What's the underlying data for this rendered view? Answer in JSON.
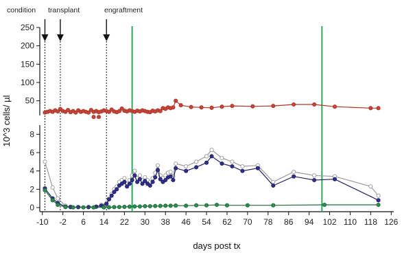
{
  "chart_data": {
    "type": "line",
    "xlabel": "days post tx",
    "ylabel": "10^3 cells/ µl",
    "x_ticks": [
      -10,
      -2,
      6,
      14,
      22,
      30,
      38,
      46,
      54,
      62,
      70,
      78,
      86,
      94,
      102,
      110,
      118,
      126
    ],
    "x_tick_labels": [
      "-10",
      "-2",
      "6",
      "14",
      "22",
      "30",
      "38",
      "46",
      "54",
      "62",
      "70",
      "78",
      "86",
      "94",
      "102",
      "110",
      "118",
      "126"
    ],
    "xlim": [
      -11,
      127
    ],
    "y_upper": {
      "ylim": [
        10,
        250
      ],
      "ticks": [
        50,
        100,
        150,
        200,
        250
      ],
      "tick_labels": [
        "50",
        "100",
        "150",
        "200",
        "250"
      ]
    },
    "y_lower": {
      "ylim": [
        -0.3,
        9
      ],
      "ticks": [
        0,
        2,
        4,
        6,
        8
      ],
      "tick_labels": [
        "0",
        "2",
        "4",
        "6",
        "8"
      ]
    },
    "annotations": [
      {
        "label": "condition",
        "x": -9
      },
      {
        "label": "transplant",
        "x": -3
      },
      {
        "label": "engraftment",
        "x": 15
      }
    ],
    "vlines": [
      {
        "x": 25,
        "color": "#2aaa5e"
      },
      {
        "x": 99,
        "color": "#2aaa5e"
      }
    ],
    "series": [
      {
        "panel": "upper",
        "color": "#b23226",
        "marker_fill": "#c0473a",
        "x": [
          -9,
          -8,
          -7,
          -6,
          -5,
          -4,
          -3,
          -2,
          -1,
          0,
          1,
          2,
          3,
          4,
          5,
          6,
          7,
          8,
          9,
          10,
          11,
          12,
          13,
          14,
          15,
          16,
          17,
          18,
          19,
          20,
          21,
          22,
          23,
          24,
          25,
          26,
          27,
          28,
          29,
          30,
          31,
          32,
          33,
          34,
          35,
          36,
          37,
          38,
          39,
          40,
          41,
          42,
          44,
          48,
          52,
          56,
          60,
          64,
          72,
          80,
          88,
          96,
          104,
          118,
          121
        ],
        "y": [
          18,
          20,
          22,
          20,
          24,
          21,
          28,
          22,
          20,
          25,
          19,
          22,
          18,
          24,
          20,
          22,
          20,
          18,
          25,
          20,
          22,
          19,
          21,
          24,
          22,
          20,
          26,
          21,
          19,
          22,
          29,
          23,
          21,
          24,
          22,
          20,
          23,
          21,
          24,
          22,
          20,
          19,
          23,
          21,
          24,
          22,
          30,
          28,
          32,
          30,
          32,
          50,
          38,
          33,
          32,
          31,
          34,
          36,
          35,
          36,
          40,
          40,
          34,
          30,
          30
        ],
        "isolated_points": [
          {
            "x": 10,
            "y": 6
          },
          {
            "x": 12,
            "y": 6
          }
        ]
      },
      {
        "panel": "lower",
        "color": "#999999",
        "marker_fill": "#ffffff",
        "x": [
          -9,
          -6,
          -4,
          -1,
          1,
          4,
          8,
          11,
          13,
          15,
          16,
          17,
          18,
          19,
          20,
          21,
          22,
          23,
          24,
          25,
          26,
          27,
          28,
          29,
          30,
          31,
          32,
          33,
          34,
          35,
          36,
          37,
          38,
          39,
          40,
          41,
          42,
          46,
          50,
          54,
          56,
          60,
          64,
          68,
          74,
          80,
          88,
          96,
          104,
          118,
          121
        ],
        "y": [
          5.0,
          2.2,
          1.0,
          0.2,
          0.1,
          0.05,
          0.05,
          0.1,
          0.3,
          0.5,
          1.0,
          1.5,
          2.0,
          2.3,
          2.8,
          3.0,
          3.2,
          2.6,
          3.0,
          3.5,
          4.0,
          3.2,
          3.5,
          3.0,
          3.3,
          3.0,
          2.8,
          3.2,
          3.8,
          4.6,
          3.5,
          3.2,
          3.5,
          3.8,
          3.9,
          3.4,
          4.8,
          4.5,
          5.0,
          5.6,
          6.3,
          5.4,
          5.0,
          4.5,
          4.6,
          2.8,
          3.9,
          3.5,
          3.4,
          2.3,
          1.3
        ]
      },
      {
        "panel": "lower",
        "color": "#22226a",
        "marker_fill": "#2f2f8a",
        "x": [
          -9,
          -6,
          -4,
          -1,
          1,
          4,
          8,
          11,
          13,
          15,
          16,
          17,
          18,
          19,
          20,
          21,
          22,
          23,
          24,
          25,
          26,
          27,
          28,
          29,
          30,
          31,
          32,
          33,
          34,
          35,
          36,
          37,
          38,
          39,
          40,
          41,
          42,
          46,
          50,
          54,
          56,
          60,
          64,
          68,
          74,
          80,
          88,
          96,
          104,
          121
        ],
        "y": [
          2.1,
          1.0,
          0.5,
          0.1,
          0.05,
          0.05,
          0.05,
          0.1,
          0.2,
          0.4,
          0.9,
          1.3,
          1.7,
          2.0,
          2.4,
          2.6,
          2.8,
          2.3,
          2.6,
          3.0,
          3.5,
          2.8,
          3.1,
          2.6,
          2.9,
          2.6,
          2.4,
          2.8,
          3.3,
          4.1,
          3.1,
          2.8,
          3.0,
          3.3,
          3.4,
          3.0,
          4.3,
          4.0,
          4.4,
          4.9,
          5.6,
          4.8,
          4.5,
          4.0,
          4.3,
          2.4,
          3.4,
          3.0,
          3.1,
          0.8
        ]
      },
      {
        "panel": "lower",
        "color": "#1f6b3a",
        "marker_fill": "#2e8c4f",
        "x": [
          -9,
          -6,
          -4,
          -1,
          2,
          6,
          10,
          14,
          16,
          18,
          20,
          22,
          24,
          26,
          28,
          30,
          32,
          34,
          36,
          38,
          40,
          42,
          46,
          50,
          54,
          58,
          62,
          70,
          80,
          100,
          121
        ],
        "y": [
          1.9,
          0.8,
          0.3,
          0.05,
          0.02,
          0.02,
          0.02,
          0.02,
          0.03,
          0.05,
          0.06,
          0.08,
          0.1,
          0.12,
          0.12,
          0.15,
          0.15,
          0.17,
          0.18,
          0.2,
          0.2,
          0.22,
          0.2,
          0.25,
          0.25,
          0.3,
          0.25,
          0.25,
          0.25,
          0.3,
          0.3
        ]
      }
    ]
  }
}
